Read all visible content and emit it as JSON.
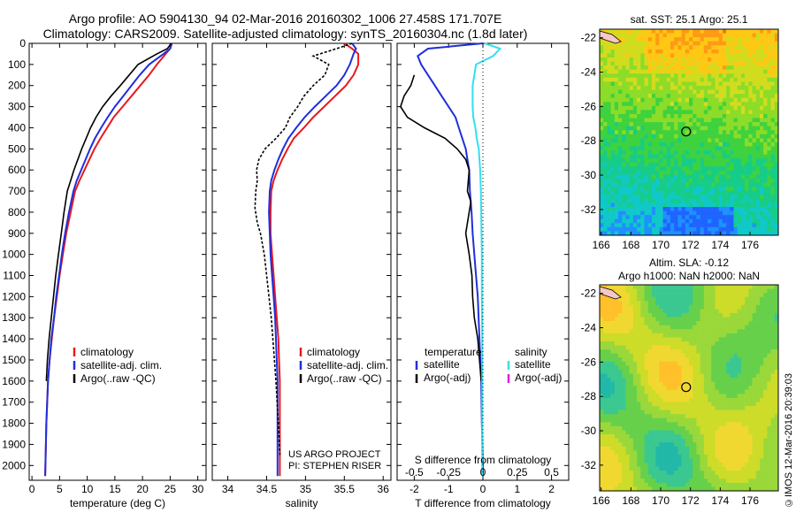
{
  "header": {
    "line1": "Argo profile: AO 5904130_94 02-Mar-2016 20160302_1006 27.458S 171.707E",
    "line2": "Climatology: CARS2009. Satellite-adjusted climatology: synTS_20160304.nc (1.8d later)"
  },
  "stamp": "©IMOS 12-Mar-2016 20:39:03",
  "colors": {
    "climatology": "#e8181e",
    "satellite": "#1f2fdc",
    "argo": "#000000",
    "sal_satellite": "#33e0ee",
    "sal_argo": "#e020e0"
  },
  "chart_data": [
    {
      "type": "line",
      "id": "temperature",
      "xlabel": "temperature (deg C)",
      "ylabel": "",
      "xlim": [
        -0.5,
        31.5
      ],
      "ylim": [
        2070,
        0
      ],
      "xticks": [
        0,
        5,
        10,
        15,
        20,
        25,
        30
      ],
      "yticks": [
        0,
        100,
        200,
        300,
        400,
        500,
        600,
        700,
        800,
        900,
        1000,
        1100,
        1200,
        1300,
        1400,
        1500,
        1600,
        1700,
        1800,
        1900,
        2000
      ],
      "legend": [
        "climatology",
        "satellite-adj. clim.",
        "Argo(..raw -QC)"
      ],
      "series": [
        {
          "name": "climatology",
          "color": "#e8181e",
          "x": [
            25.3,
            25.0,
            24.2,
            22.6,
            21.2,
            19.6,
            18.0,
            16.4,
            14.8,
            13.6,
            12.4,
            11.3,
            10.4,
            9.5,
            8.6,
            7.8,
            7.0,
            6.2,
            5.6,
            5.0,
            4.5,
            4.0,
            3.6,
            3.2,
            2.9,
            2.6,
            2.4
          ],
          "y": [
            0,
            25,
            50,
            100,
            150,
            200,
            250,
            300,
            350,
            400,
            450,
            500,
            550,
            600,
            650,
            700,
            800,
            900,
            1000,
            1100,
            1200,
            1300,
            1400,
            1500,
            1600,
            1800,
            2050
          ]
        },
        {
          "name": "satellite-adj. clim.",
          "color": "#1f2fdc",
          "x": [
            25.3,
            25.0,
            23.8,
            21.2,
            19.5,
            18.0,
            16.5,
            15.0,
            13.7,
            12.5,
            11.4,
            10.5,
            9.7,
            8.9,
            8.1,
            7.5,
            6.7,
            6.0,
            5.4,
            4.9,
            4.4,
            4.0,
            3.5,
            3.2,
            2.9,
            2.6,
            2.4
          ],
          "y": [
            0,
            25,
            50,
            100,
            150,
            200,
            250,
            300,
            350,
            400,
            450,
            500,
            550,
            600,
            650,
            700,
            800,
            900,
            1000,
            1100,
            1200,
            1300,
            1400,
            1500,
            1600,
            1800,
            2050
          ]
        },
        {
          "name": "Argo(..raw -QC)",
          "color": "#000000",
          "x": [
            25.2,
            24.5,
            22.6,
            19.2,
            17.6,
            16.0,
            14.3,
            12.8,
            11.6,
            10.6,
            9.8,
            9.0,
            8.3,
            7.6,
            7.0,
            6.4,
            5.8,
            5.3,
            4.8,
            4.3,
            3.9,
            3.5,
            3.1,
            2.8,
            2.6
          ],
          "y": [
            0,
            25,
            50,
            100,
            150,
            200,
            250,
            300,
            350,
            400,
            450,
            500,
            550,
            600,
            650,
            700,
            800,
            900,
            1000,
            1100,
            1200,
            1300,
            1400,
            1500,
            1600
          ]
        }
      ]
    },
    {
      "type": "line",
      "id": "salinity",
      "xlabel": "salinity",
      "ylabel": "",
      "xlim": [
        33.8,
        36.1
      ],
      "ylim": [
        2070,
        0
      ],
      "xticks": [
        34,
        34.5,
        35,
        35.5,
        36
      ],
      "legend": [
        "climatology",
        "satellite-adj. clim.",
        "Argo(..raw -QC)"
      ],
      "annotation": [
        "US ARGO PROJECT",
        "PI: STEPHEN RISER"
      ],
      "series": [
        {
          "name": "climatology",
          "color": "#e8181e",
          "x": [
            35.5,
            35.6,
            35.68,
            35.68,
            35.62,
            35.52,
            35.38,
            35.24,
            35.1,
            34.98,
            34.85,
            34.77,
            34.7,
            34.64,
            34.59,
            34.56,
            34.55,
            34.55,
            34.57,
            34.59,
            34.61,
            34.63,
            34.65,
            34.66,
            34.67,
            34.67,
            34.67
          ],
          "y": [
            0,
            25,
            50,
            100,
            150,
            200,
            250,
            300,
            350,
            400,
            450,
            500,
            550,
            600,
            650,
            700,
            800,
            900,
            1000,
            1100,
            1200,
            1300,
            1400,
            1500,
            1600,
            1800,
            2050
          ]
        },
        {
          "name": "satellite-adj. clim.",
          "color": "#1f2fdc",
          "x": [
            35.6,
            35.65,
            35.62,
            35.57,
            35.5,
            35.4,
            35.26,
            35.12,
            34.99,
            34.88,
            34.78,
            34.71,
            34.65,
            34.6,
            34.56,
            34.54,
            34.53,
            34.54,
            34.55,
            34.57,
            34.59,
            34.61,
            34.62,
            34.63,
            34.64,
            34.64,
            34.64
          ],
          "y": [
            0,
            25,
            50,
            100,
            150,
            200,
            250,
            300,
            350,
            400,
            450,
            500,
            550,
            600,
            650,
            700,
            800,
            900,
            1000,
            1100,
            1200,
            1300,
            1400,
            1500,
            1600,
            1800,
            2050
          ]
        },
        {
          "name": "Argo(..raw -QC)",
          "color": "#000000",
          "x": [
            35.6,
            35.4,
            35.1,
            35.3,
            35.25,
            35.1,
            34.98,
            34.9,
            34.8,
            34.74,
            34.62,
            34.48,
            34.4,
            34.37,
            34.38,
            34.36,
            34.35,
            34.38,
            34.42,
            34.47,
            34.5,
            34.53,
            34.56,
            34.58,
            34.6,
            34.62,
            34.65,
            34.67
          ],
          "y": [
            0,
            25,
            60,
            100,
            150,
            200,
            250,
            300,
            350,
            400,
            450,
            500,
            550,
            600,
            650,
            700,
            780,
            850,
            900,
            1000,
            1100,
            1200,
            1300,
            1400,
            1500,
            1600,
            1800,
            1950
          ]
        }
      ]
    },
    {
      "type": "line",
      "id": "difference",
      "xlabel": "T difference from climatology",
      "xlabel_top": "S difference from climatology",
      "xlim": [
        -2.5,
        2.5
      ],
      "ylim": [
        2070,
        0
      ],
      "xticks": [
        -2,
        -1,
        0,
        1,
        2
      ],
      "xticklabels": [
        "-2",
        "-1",
        "0",
        "1",
        "2"
      ],
      "sticks": [
        -0.5,
        -0.25,
        0,
        0.25,
        0.5
      ],
      "sticklabels": [
        "-0.5",
        "-0.25",
        "0",
        "0.25",
        "0.5"
      ],
      "legend_groups": [
        {
          "title": "temperature",
          "items": [
            "satellite",
            "Argo(-adj)"
          ]
        },
        {
          "title": "salinity",
          "items": [
            "satellite",
            "Argo(-adj)"
          ]
        }
      ],
      "series": [
        {
          "name": "temperature satellite",
          "color": "#1f2fdc",
          "x": [
            0.0,
            -1.6,
            -1.9,
            -1.8,
            -1.6,
            -1.4,
            -1.2,
            -1.0,
            -0.8,
            -0.7,
            -0.6,
            -0.5,
            -0.45,
            -0.4,
            -0.38,
            -0.33,
            -0.3,
            -0.25,
            -0.2,
            -0.15,
            -0.1,
            -0.05,
            -0.03,
            0.0,
            0.0
          ],
          "y": [
            0,
            25,
            60,
            100,
            150,
            200,
            250,
            300,
            350,
            400,
            450,
            500,
            550,
            600,
            700,
            800,
            900,
            1000,
            1100,
            1200,
            1400,
            1600,
            1800,
            2000,
            2050
          ]
        },
        {
          "name": "temperature Argo(-adj)",
          "color": "#000000",
          "x": [
            -2.0,
            -2.1,
            -2.3,
            -2.4,
            -2.2,
            -1.7,
            -1.1,
            -0.75,
            -0.5,
            -0.4,
            -0.45,
            -0.35,
            -0.5,
            -0.4,
            -0.32,
            -0.3,
            -0.25,
            -0.15,
            -0.05
          ],
          "y": [
            150,
            200,
            250,
            300,
            350,
            400,
            450,
            500,
            550,
            600,
            700,
            750,
            900,
            1000,
            1100,
            1200,
            1300,
            1400,
            1600
          ]
        },
        {
          "name": "salinity satellite",
          "color": "#33e0ee",
          "x": [
            0.05,
            0.5,
            0.3,
            -0.2,
            -0.25,
            -0.3,
            -0.3,
            -0.3,
            -0.28,
            -0.22,
            -0.18,
            -0.12,
            -0.1,
            -0.08,
            -0.06,
            -0.05,
            -0.04,
            -0.03,
            -0.03,
            -0.02,
            -0.02,
            -0.02,
            -0.02
          ],
          "y": [
            0,
            25,
            60,
            100,
            150,
            200,
            250,
            300,
            350,
            400,
            450,
            500,
            550,
            600,
            700,
            800,
            900,
            1000,
            1200,
            1400,
            1600,
            1800,
            2050
          ]
        }
      ]
    },
    {
      "type": "heatmap",
      "id": "sst-map",
      "title": "sat. SST: 25.1  Argo: 25.1",
      "xticks": [
        166,
        168,
        170,
        172,
        174,
        176
      ],
      "yticks": [
        -22,
        -24,
        -26,
        -28,
        -30,
        -32
      ],
      "xlim": [
        165.9,
        177.9
      ],
      "ylim": [
        -33.5,
        -21.5
      ],
      "marker": {
        "lon": 171.707,
        "lat": -27.458
      }
    },
    {
      "type": "heatmap",
      "id": "sla-map",
      "title": "Altim. SLA: -0.12",
      "subtitle": "Argo h1000: NaN  h2000: NaN",
      "xticks": [
        166,
        168,
        170,
        172,
        174,
        176
      ],
      "yticks": [
        -22,
        -24,
        -26,
        -28,
        -30,
        -32
      ],
      "xlim": [
        165.9,
        177.9
      ],
      "ylim": [
        -33.5,
        -21.5
      ],
      "marker": {
        "lon": 171.707,
        "lat": -27.458
      }
    }
  ]
}
